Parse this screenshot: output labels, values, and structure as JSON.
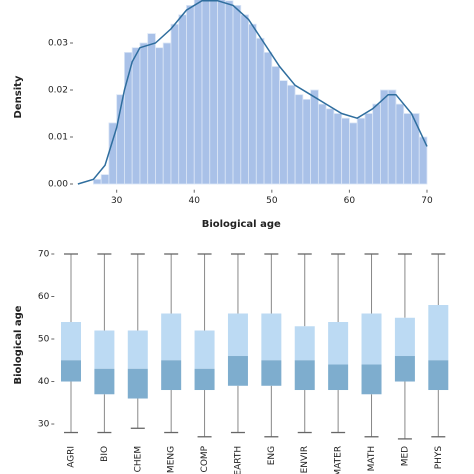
{
  "chart_data": [
    {
      "type": "histogram",
      "y_label": "Density",
      "x_label": "Biological age",
      "bins": [
        27,
        28,
        29,
        30,
        31,
        32,
        33,
        34,
        35,
        36,
        37,
        38,
        39,
        40,
        41,
        42,
        43,
        44,
        45,
        46,
        47,
        48,
        49,
        50,
        51,
        52,
        53,
        54,
        55,
        56,
        57,
        58,
        59,
        60,
        61,
        62,
        63,
        64,
        65,
        66,
        67,
        68,
        69,
        70
      ],
      "values": [
        0.001,
        0.002,
        0.013,
        0.019,
        0.028,
        0.029,
        0.03,
        0.032,
        0.029,
        0.03,
        0.034,
        0.036,
        0.038,
        0.04,
        0.04,
        0.04,
        0.04,
        0.039,
        0.038,
        0.036,
        0.034,
        0.031,
        0.028,
        0.025,
        0.022,
        0.021,
        0.019,
        0.018,
        0.02,
        0.017,
        0.016,
        0.015,
        0.014,
        0.013,
        0.014,
        0.015,
        0.017,
        0.02,
        0.02,
        0.017,
        0.015,
        0.015,
        0.01
      ],
      "color": "#a9c1e8",
      "kde": {
        "x": [
          25,
          27,
          28.5,
          30,
          31,
          32,
          33,
          35,
          37,
          39,
          41,
          43,
          45,
          47,
          49,
          51,
          53,
          55,
          57,
          59,
          61,
          63,
          65,
          66,
          68,
          70
        ],
        "values": [
          0,
          0.001,
          0.004,
          0.012,
          0.02,
          0.026,
          0.029,
          0.03,
          0.033,
          0.037,
          0.039,
          0.039,
          0.038,
          0.035,
          0.03,
          0.025,
          0.021,
          0.019,
          0.017,
          0.015,
          0.014,
          0.016,
          0.019,
          0.019,
          0.015,
          0.008
        ],
        "color": "#2f6e9e"
      },
      "xlim": [
        24.5,
        72
      ],
      "ylim": [
        -0.001,
        0.039
      ],
      "xticks": [
        30,
        40,
        50,
        60,
        70
      ],
      "yticks": [
        {
          "value": 0,
          "label": "0.00"
        },
        0.01,
        0.02,
        0.03
      ]
    },
    {
      "type": "box",
      "y_label": "Biological age",
      "categories": [
        "AGRI",
        "BIO",
        "CHEM",
        "MENG",
        "COMP",
        "EARTH",
        "ENG",
        "ENVIR",
        "MATER",
        "MATH",
        "MED",
        "PHYS"
      ],
      "min": [
        28,
        28,
        29,
        28,
        27,
        28,
        27,
        28,
        28,
        27,
        26.5,
        27
      ],
      "q1": [
        40,
        37,
        36,
        38,
        38,
        39,
        39,
        38,
        38,
        37,
        40,
        38
      ],
      "median": [
        45,
        43,
        43,
        45,
        43,
        46,
        45,
        45,
        44,
        44,
        46,
        45
      ],
      "q3": [
        54,
        52,
        52,
        56,
        52,
        56,
        56,
        53,
        54,
        56,
        55,
        58
      ],
      "max": [
        70,
        70,
        70,
        70,
        70,
        70,
        70,
        70,
        70,
        70,
        70,
        70
      ],
      "lower_color": "#7eadce",
      "upper_color": "#bcdaf3",
      "ylim": [
        26.5,
        71
      ],
      "yticks": [
        30,
        40,
        50,
        60,
        70
      ]
    }
  ]
}
